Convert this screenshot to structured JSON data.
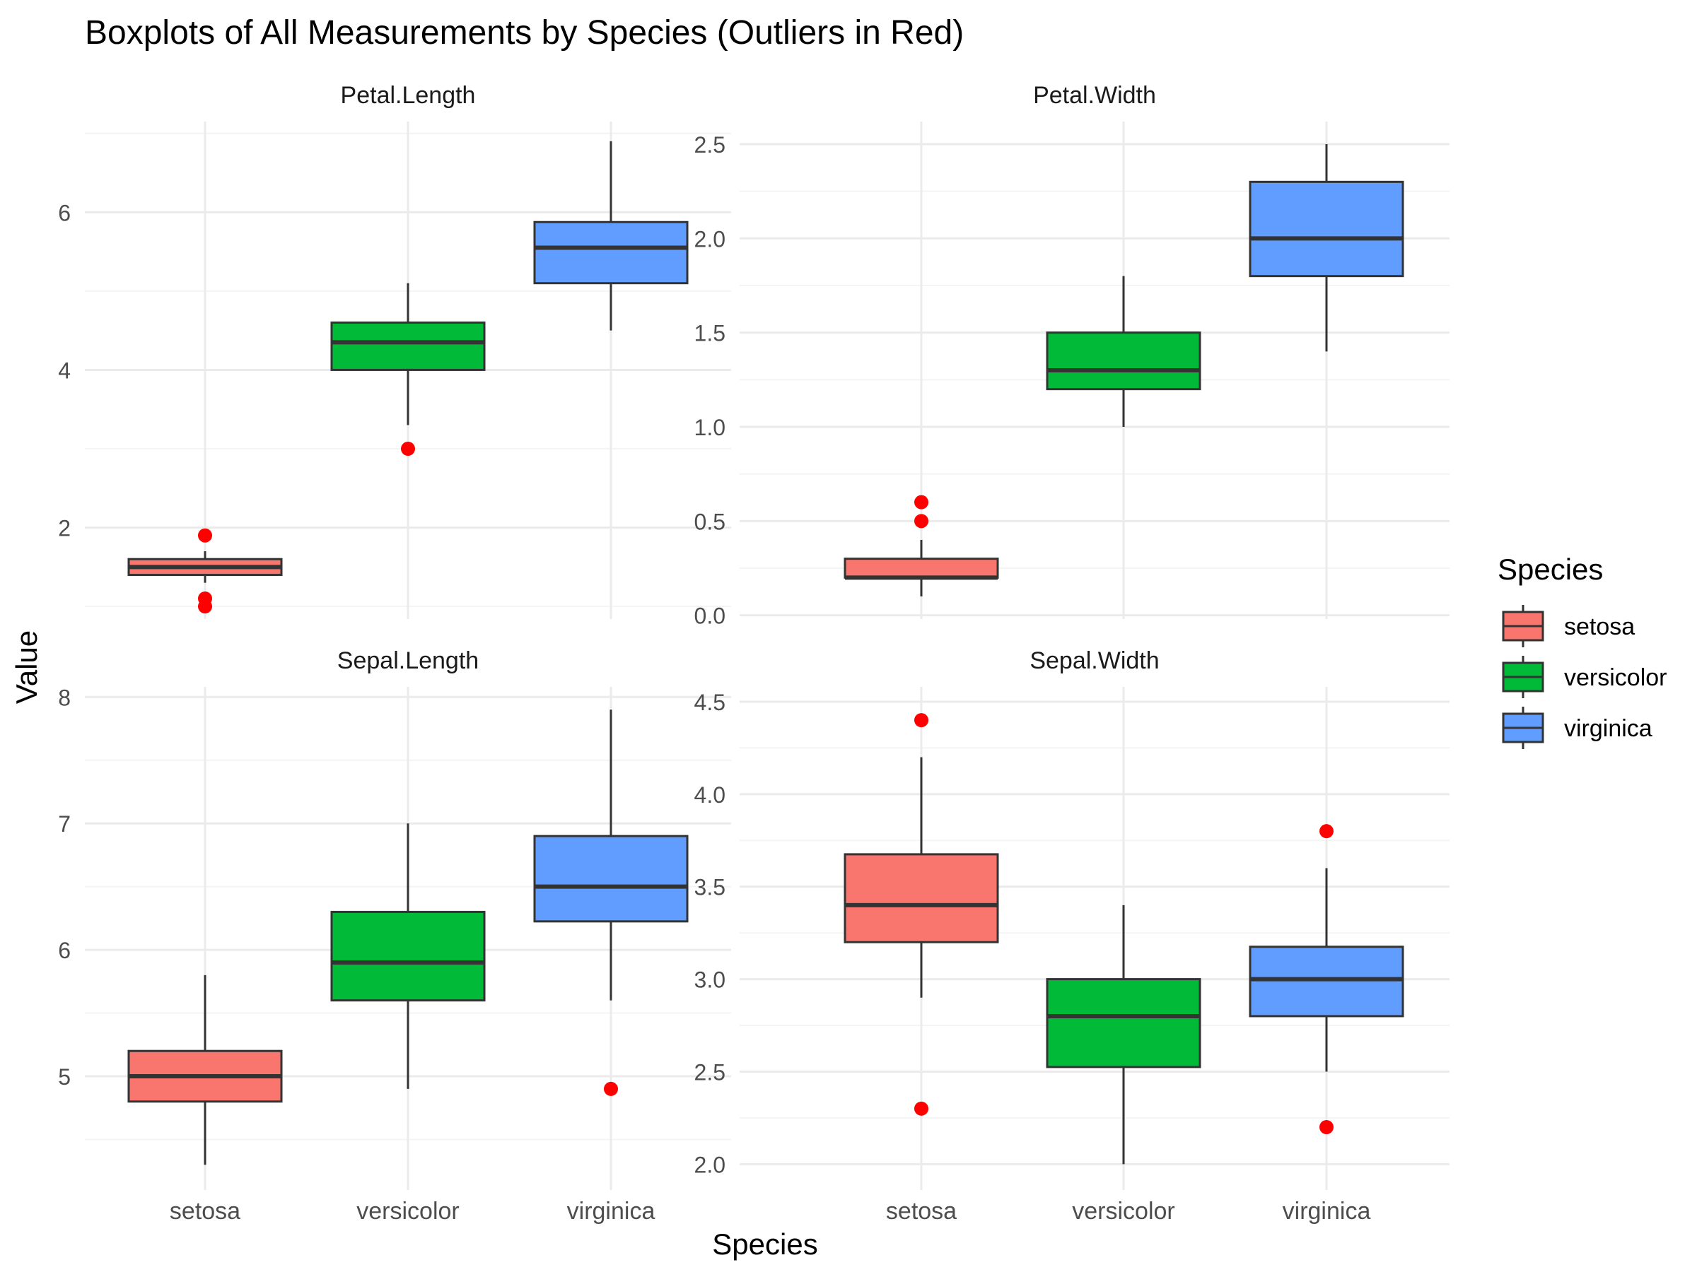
{
  "chart_data": {
    "type": "boxplot",
    "title": "Boxplots of All Measurements by Species (Outliers in Red)",
    "xlabel": "Species",
    "ylabel": "Value",
    "categories": [
      "setosa",
      "versicolor",
      "virginica"
    ],
    "colors": {
      "setosa": "#F8766D",
      "versicolor": "#00BA38",
      "virginica": "#619CFF"
    },
    "outlier_color": "#FF0000",
    "legend": {
      "title": "Species",
      "position": "right",
      "items": [
        "setosa",
        "versicolor",
        "virginica"
      ]
    },
    "grid": true,
    "panels": [
      {
        "title": "Petal.Length",
        "ylim": [
          0.84,
          7.15
        ],
        "yticks": [
          2,
          4,
          6
        ],
        "ytick_labels": [
          "2",
          "4",
          "6"
        ],
        "boxes": [
          {
            "category": "setosa",
            "whisker_low": 1.3,
            "q1": 1.4,
            "median": 1.5,
            "q3": 1.6,
            "whisker_high": 1.7,
            "outliers": [
              1.0,
              1.1,
              1.9
            ]
          },
          {
            "category": "versicolor",
            "whisker_low": 3.3,
            "q1": 4.0,
            "median": 4.35,
            "q3": 4.6,
            "whisker_high": 5.1,
            "outliers": [
              3.0
            ]
          },
          {
            "category": "virginica",
            "whisker_low": 4.5,
            "q1": 5.1,
            "median": 5.55,
            "q3": 5.875,
            "whisker_high": 6.9,
            "outliers": []
          }
        ]
      },
      {
        "title": "Petal.Width",
        "ylim": [
          -0.02,
          2.62
        ],
        "yticks": [
          0.0,
          0.5,
          1.0,
          1.5,
          2.0,
          2.5
        ],
        "ytick_labels": [
          "0.0",
          "0.5",
          "1.0",
          "1.5",
          "2.0",
          "2.5"
        ],
        "boxes": [
          {
            "category": "setosa",
            "whisker_low": 0.1,
            "q1": 0.2,
            "median": 0.2,
            "q3": 0.3,
            "whisker_high": 0.4,
            "outliers": [
              0.5,
              0.6
            ]
          },
          {
            "category": "versicolor",
            "whisker_low": 1.0,
            "q1": 1.2,
            "median": 1.3,
            "q3": 1.5,
            "whisker_high": 1.8,
            "outliers": []
          },
          {
            "category": "virginica",
            "whisker_low": 1.4,
            "q1": 1.8,
            "median": 2.0,
            "q3": 2.3,
            "whisker_high": 2.5,
            "outliers": []
          }
        ]
      },
      {
        "title": "Sepal.Length",
        "ylim": [
          4.1,
          8.08
        ],
        "yticks": [
          5,
          6,
          7,
          8
        ],
        "ytick_labels": [
          "5",
          "6",
          "7",
          "8"
        ],
        "boxes": [
          {
            "category": "setosa",
            "whisker_low": 4.3,
            "q1": 4.8,
            "median": 5.0,
            "q3": 5.2,
            "whisker_high": 5.8,
            "outliers": []
          },
          {
            "category": "versicolor",
            "whisker_low": 4.9,
            "q1": 5.6,
            "median": 5.9,
            "q3": 6.3,
            "whisker_high": 7.0,
            "outliers": []
          },
          {
            "category": "virginica",
            "whisker_low": 5.6,
            "q1": 6.225,
            "median": 6.5,
            "q3": 6.9,
            "whisker_high": 7.9,
            "outliers": [
              4.9
            ]
          }
        ]
      },
      {
        "title": "Sepal.Width",
        "ylim": [
          1.86,
          4.58
        ],
        "yticks": [
          2.0,
          2.5,
          3.0,
          3.5,
          4.0,
          4.5
        ],
        "ytick_labels": [
          "2.0",
          "2.5",
          "3.0",
          "3.5",
          "4.0",
          "4.5"
        ],
        "boxes": [
          {
            "category": "setosa",
            "whisker_low": 2.9,
            "q1": 3.2,
            "median": 3.4,
            "q3": 3.675,
            "whisker_high": 4.2,
            "outliers": [
              2.3,
              4.4
            ]
          },
          {
            "category": "versicolor",
            "whisker_low": 2.0,
            "q1": 2.525,
            "median": 2.8,
            "q3": 3.0,
            "whisker_high": 3.4,
            "outliers": []
          },
          {
            "category": "virginica",
            "whisker_low": 2.5,
            "q1": 2.8,
            "median": 3.0,
            "q3": 3.175,
            "whisker_high": 3.6,
            "outliers": [
              2.2,
              3.8
            ]
          }
        ]
      }
    ]
  }
}
